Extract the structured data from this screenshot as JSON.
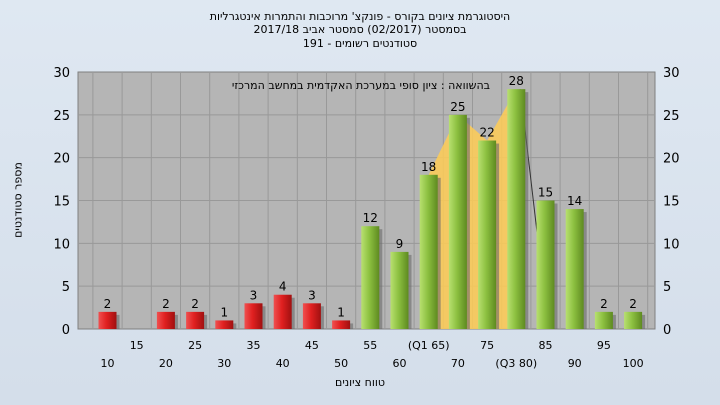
{
  "header": {
    "line1": "היסטוגרמת ציונים בקורס - פונקצ' מרוכבות והתמרות אינטגרליות",
    "line2": "בסמסטר  (02/2017)  סמסטר אביב 2017/18",
    "line3": "סטודנטים רשומים - 191"
  },
  "chart_data": {
    "type": "bar",
    "title": "היסטוגרמת ציונים בקורס - פונקצ' מרוכבות והתמרות אינטגרליות",
    "ylabel": "מספר סטודנטים",
    "xlabel": "טווח ציונים",
    "annotation": "בהשוואה : ציון סופי במערכת האקדמית במחשב המרכזי",
    "ylim": [
      0,
      30
    ],
    "yticks": [
      0,
      5,
      10,
      15,
      20,
      25,
      30
    ],
    "categories": [
      "10",
      "15",
      "20",
      "25",
      "30",
      "35",
      "40",
      "45",
      "50",
      "55",
      "60",
      "(Q1 65)",
      "70",
      "75",
      "(Q3 80)",
      "85",
      "90",
      "95",
      "100"
    ],
    "tick_row": [
      "lower",
      "upper",
      "lower",
      "upper",
      "lower",
      "upper",
      "lower",
      "upper",
      "lower",
      "upper",
      "lower",
      "upper",
      "lower",
      "upper",
      "lower",
      "upper",
      "lower",
      "upper",
      "lower"
    ],
    "values": [
      2,
      0,
      2,
      2,
      1,
      3,
      4,
      3,
      1,
      12,
      9,
      18,
      25,
      22,
      28,
      15,
      14,
      2,
      2
    ],
    "bar_colors": [
      "red",
      "none",
      "red",
      "red",
      "red",
      "red",
      "red",
      "red",
      "red",
      "green",
      "green",
      "green",
      "green",
      "green",
      "green",
      "green",
      "green",
      "green",
      "green"
    ],
    "highlight_range": [
      "(Q1 65)",
      "(Q3 80)"
    ],
    "grid": true,
    "colors": {
      "red_bar": "#e02020",
      "green_bar": "#8cc040",
      "highlight_area": "#ffcc55",
      "plot_bg": "#b5b5b5"
    }
  }
}
